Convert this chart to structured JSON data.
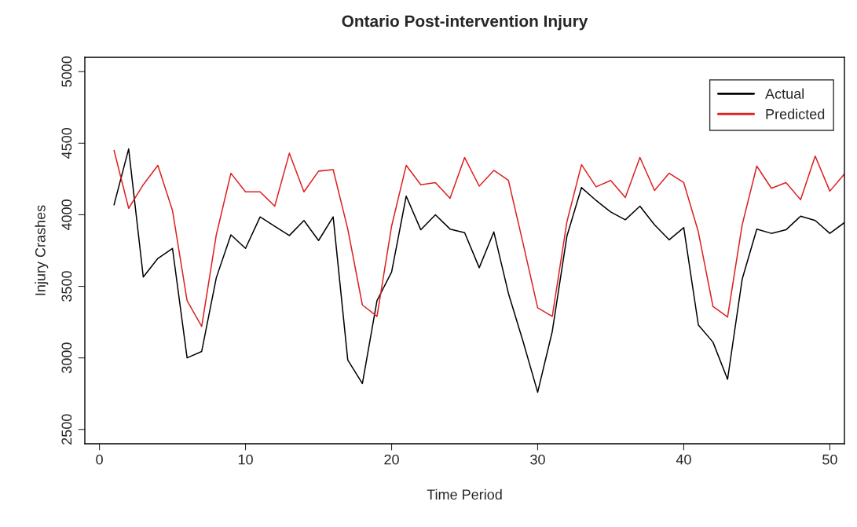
{
  "chart_data": {
    "type": "line",
    "title": "Ontario Post-intervention Injury",
    "xlabel": "Time Period",
    "ylabel": "Injury Crashes",
    "x": [
      1,
      2,
      3,
      4,
      5,
      6,
      7,
      8,
      9,
      10,
      11,
      12,
      13,
      14,
      15,
      16,
      17,
      18,
      19,
      20,
      21,
      22,
      23,
      24,
      25,
      26,
      27,
      28,
      29,
      30,
      31,
      32,
      33,
      34,
      35,
      36,
      37,
      38,
      39,
      40,
      41,
      42,
      43,
      44,
      45,
      46,
      47,
      48,
      49,
      50,
      51
    ],
    "series": [
      {
        "name": "Actual",
        "color": "#000000",
        "values": [
          4070,
          4460,
          3565,
          3695,
          3765,
          3000,
          3045,
          3560,
          3860,
          3765,
          3985,
          3920,
          3855,
          3960,
          3820,
          3985,
          2985,
          2820,
          3400,
          3600,
          4130,
          3895,
          4000,
          3900,
          3875,
          3630,
          3880,
          3450,
          3115,
          2760,
          3185,
          3850,
          4190,
          4100,
          4020,
          3965,
          4060,
          3930,
          3825,
          3910,
          3230,
          3110,
          2850,
          3550,
          3900,
          3870,
          3895,
          3990,
          3960,
          3870,
          3945
        ]
      },
      {
        "name": "Predicted",
        "color": "#dd2020",
        "values": [
          4450,
          4045,
          4210,
          4345,
          4030,
          3400,
          3220,
          3860,
          4290,
          4160,
          4160,
          4060,
          4430,
          4160,
          4305,
          4315,
          3900,
          3370,
          3290,
          3920,
          4345,
          4210,
          4225,
          4115,
          4400,
          4200,
          4310,
          4240,
          3800,
          3350,
          3290,
          3950,
          4350,
          4195,
          4240,
          4120,
          4400,
          4170,
          4290,
          4225,
          3880,
          3360,
          3285,
          3930,
          4340,
          4185,
          4225,
          4105,
          4410,
          4165,
          4285
        ]
      }
    ],
    "xlim": [
      -1,
      51
    ],
    "xticks": [
      0,
      10,
      20,
      30,
      40,
      50
    ],
    "ylim": [
      2400,
      5100
    ],
    "yticks": [
      2500,
      3000,
      3500,
      4000,
      4500,
      5000
    ],
    "grid": false,
    "legend": "top right",
    "marker": "none",
    "line_style": "solid"
  }
}
